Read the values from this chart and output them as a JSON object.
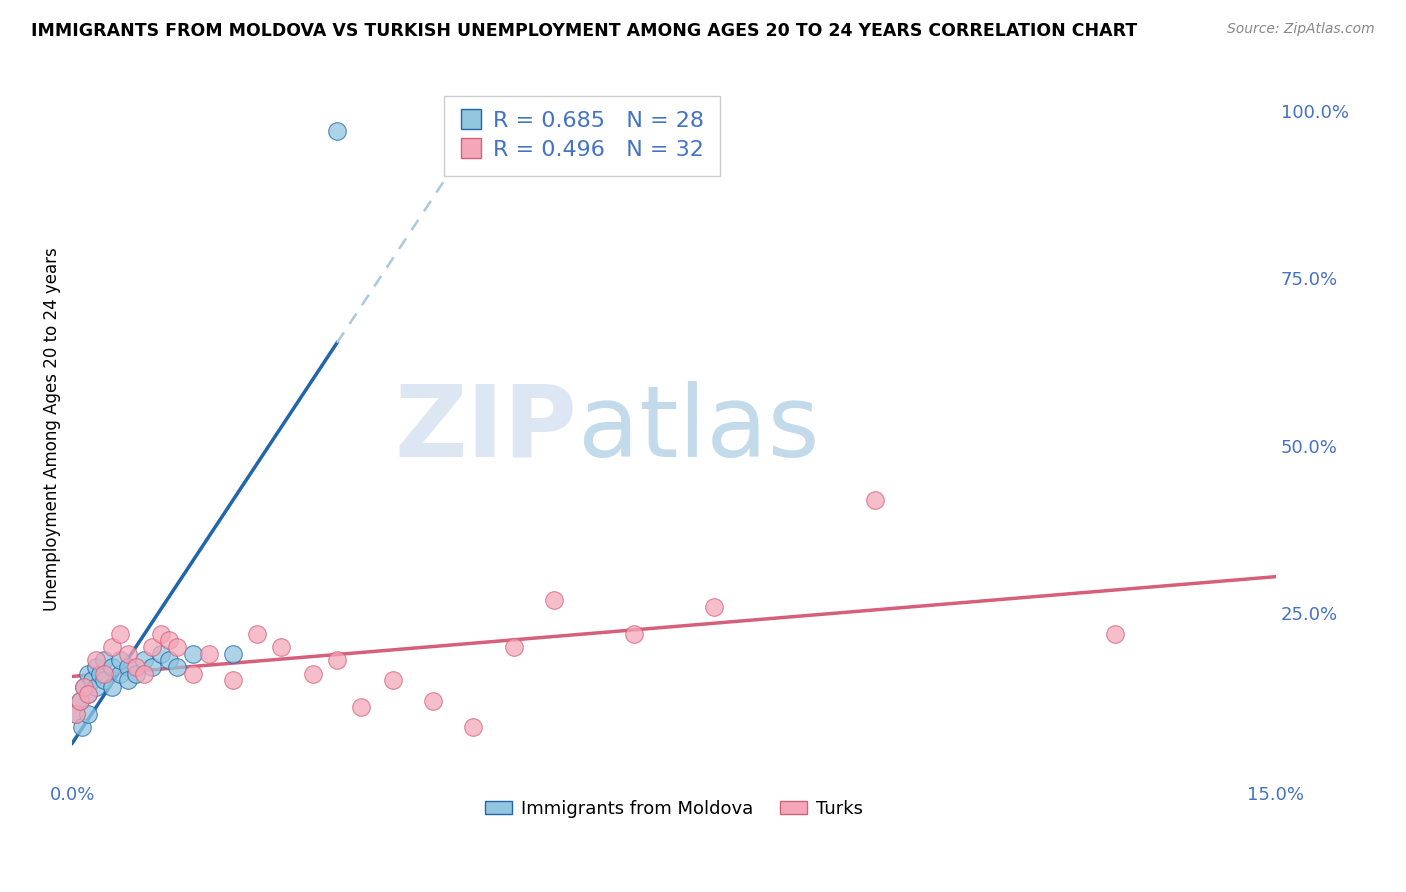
{
  "title": "IMMIGRANTS FROM MOLDOVA VS TURKISH UNEMPLOYMENT AMONG AGES 20 TO 24 YEARS CORRELATION CHART",
  "source": "Source: ZipAtlas.com",
  "ylabel": "Unemployment Among Ages 20 to 24 years",
  "xlim": [
    0.0,
    0.15
  ],
  "ylim": [
    0.0,
    1.05
  ],
  "xticks": [
    0.0,
    0.03,
    0.06,
    0.09,
    0.12,
    0.15
  ],
  "xticklabels": [
    "0.0%",
    "",
    "",
    "",
    "",
    "15.0%"
  ],
  "yticks": [
    0.0,
    0.25,
    0.5,
    0.75,
    1.0
  ],
  "yticklabels": [
    "",
    "25.0%",
    "50.0%",
    "75.0%",
    "100.0%"
  ],
  "legend_r1": "R = 0.685",
  "legend_n1": "N = 28",
  "legend_r2": "R = 0.496",
  "legend_n2": "N = 32",
  "legend_label1": "Immigrants from Moldova",
  "legend_label2": "Turks",
  "blue_color": "#92c5de",
  "pink_color": "#f4a7b9",
  "trendline_blue": "#2166ac",
  "trendline_pink": "#d6607a",
  "tick_color": "#4472c4",
  "watermark_zip": "ZIP",
  "watermark_atlas": "atlas",
  "moldova_x": [
    0.0005,
    0.001,
    0.0012,
    0.0015,
    0.002,
    0.002,
    0.002,
    0.0025,
    0.003,
    0.003,
    0.0035,
    0.004,
    0.004,
    0.005,
    0.005,
    0.006,
    0.006,
    0.007,
    0.007,
    0.008,
    0.009,
    0.01,
    0.011,
    0.012,
    0.013,
    0.015,
    0.02,
    0.033
  ],
  "moldova_y": [
    0.1,
    0.12,
    0.08,
    0.14,
    0.13,
    0.16,
    0.1,
    0.15,
    0.14,
    0.17,
    0.16,
    0.15,
    0.18,
    0.17,
    0.14,
    0.16,
    0.18,
    0.17,
    0.15,
    0.16,
    0.18,
    0.17,
    0.19,
    0.18,
    0.17,
    0.19,
    0.19,
    0.97
  ],
  "turks_x": [
    0.0005,
    0.001,
    0.0015,
    0.002,
    0.003,
    0.004,
    0.005,
    0.006,
    0.007,
    0.008,
    0.009,
    0.01,
    0.011,
    0.012,
    0.013,
    0.015,
    0.017,
    0.02,
    0.023,
    0.026,
    0.03,
    0.033,
    0.036,
    0.04,
    0.045,
    0.05,
    0.055,
    0.06,
    0.07,
    0.08,
    0.1,
    0.13
  ],
  "turks_y": [
    0.1,
    0.12,
    0.14,
    0.13,
    0.18,
    0.16,
    0.2,
    0.22,
    0.19,
    0.17,
    0.16,
    0.2,
    0.22,
    0.21,
    0.2,
    0.16,
    0.19,
    0.15,
    0.22,
    0.2,
    0.16,
    0.18,
    0.11,
    0.15,
    0.12,
    0.08,
    0.2,
    0.27,
    0.22,
    0.26,
    0.42,
    0.22
  ]
}
